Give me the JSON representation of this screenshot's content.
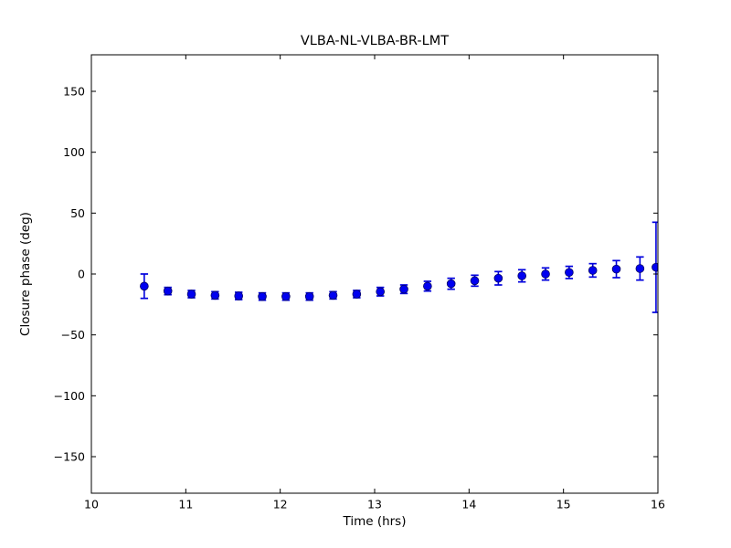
{
  "figure": {
    "background": "#ffffff",
    "axes_edge_color": "#000000"
  },
  "chart_data": {
    "type": "scatter",
    "title": "VLBA-NL-VLBA-BR-LMT",
    "xlabel": "Time (hrs)",
    "ylabel": "Closure phase (deg)",
    "xlim": [
      10,
      16
    ],
    "ylim": [
      -180,
      180
    ],
    "xticks": [
      10,
      11,
      12,
      13,
      14,
      15,
      16
    ],
    "yticks": [
      -150,
      -100,
      -50,
      0,
      50,
      100,
      150
    ],
    "grid": false,
    "series": [
      {
        "name": "closure phase",
        "marker": "circle",
        "marker_color": "#0000f0",
        "marker_edge_color": "#000060",
        "errorbar_color": "#0000dd",
        "x": [
          10.56,
          10.81,
          11.06,
          11.31,
          11.56,
          11.81,
          12.06,
          12.31,
          12.56,
          12.81,
          13.06,
          13.31,
          13.56,
          13.81,
          14.06,
          14.31,
          14.56,
          14.81,
          15.06,
          15.31,
          15.56,
          15.81,
          15.98
        ],
        "y": [
          -10,
          -14,
          -16.5,
          -17.5,
          -18,
          -18.5,
          -18.5,
          -18.5,
          -17.5,
          -16.5,
          -14.5,
          -12.5,
          -10,
          -8,
          -5.5,
          -3.5,
          -1.5,
          0,
          1.3,
          3,
          4,
          4.5,
          5.5
        ],
        "yerr": [
          10,
          3,
          3,
          3,
          3,
          3,
          3,
          3,
          3,
          3,
          3.5,
          3.5,
          4,
          4.5,
          4.5,
          5.5,
          5,
          5,
          5,
          5.5,
          7,
          9.5,
          37
        ]
      }
    ]
  }
}
